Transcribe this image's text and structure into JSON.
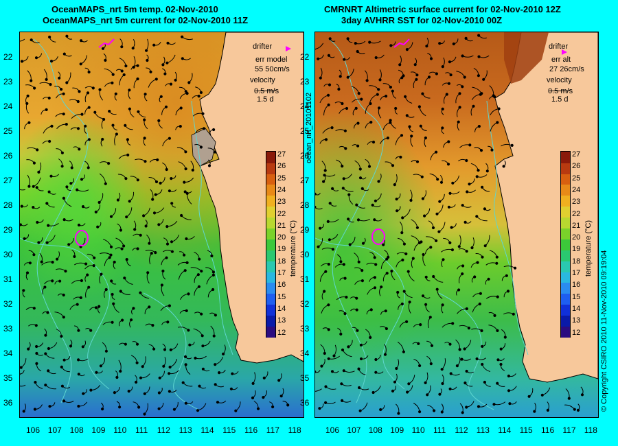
{
  "left_panel": {
    "title_line1": "OceanMAPS_nrt 5m temp. 02-Nov-2010",
    "title_line2": "OceanMAPS_nrt 5m current for 02-Nov-2010 11Z",
    "legend": {
      "drifter": "drifter",
      "err_label": "err model",
      "err_value": "55 50cm/s",
      "velocity": "velocity",
      "velocity_value": "0.5 m/s",
      "duration": "1.5 d"
    }
  },
  "right_panel": {
    "title_line1": "CMRNRT Altimetric surface current for 02-Nov-2010 12Z",
    "title_line2": "3day AVHRR SST for 02-Nov-2010 00Z",
    "legend": {
      "drifter": "drifter",
      "err_label": "err alt",
      "err_value": "27 26cm/s",
      "velocity": "velocity",
      "velocity_value": "0.5 m/s",
      "duration": "1.5 d"
    }
  },
  "axes": {
    "latitudes": [
      "22",
      "23",
      "24",
      "25",
      "26",
      "27",
      "28",
      "29",
      "30",
      "31",
      "32",
      "33",
      "34",
      "35",
      "36"
    ],
    "longitudes": [
      "106",
      "107",
      "108",
      "109",
      "110",
      "111",
      "112",
      "113",
      "114",
      "115",
      "116",
      "117",
      "118"
    ]
  },
  "colorbar": {
    "label": "temperature (°C)",
    "ticks": [
      "27",
      "26",
      "25",
      "24",
      "23",
      "22",
      "21",
      "20",
      "19",
      "18",
      "17",
      "16",
      "15",
      "14",
      "13",
      "12"
    ],
    "range": [
      12,
      27.5
    ]
  },
  "side_notes": {
    "run_id": "ocean_nrt_20101102",
    "copyright": "© Copyright CSIRO 2010   11-Nov-2010 09:19:04"
  },
  "colors": {
    "land": "#f7c89b",
    "coast_contour": "#5fd6d0",
    "drifter": "#ff00ff",
    "border": "#00ffff"
  }
}
